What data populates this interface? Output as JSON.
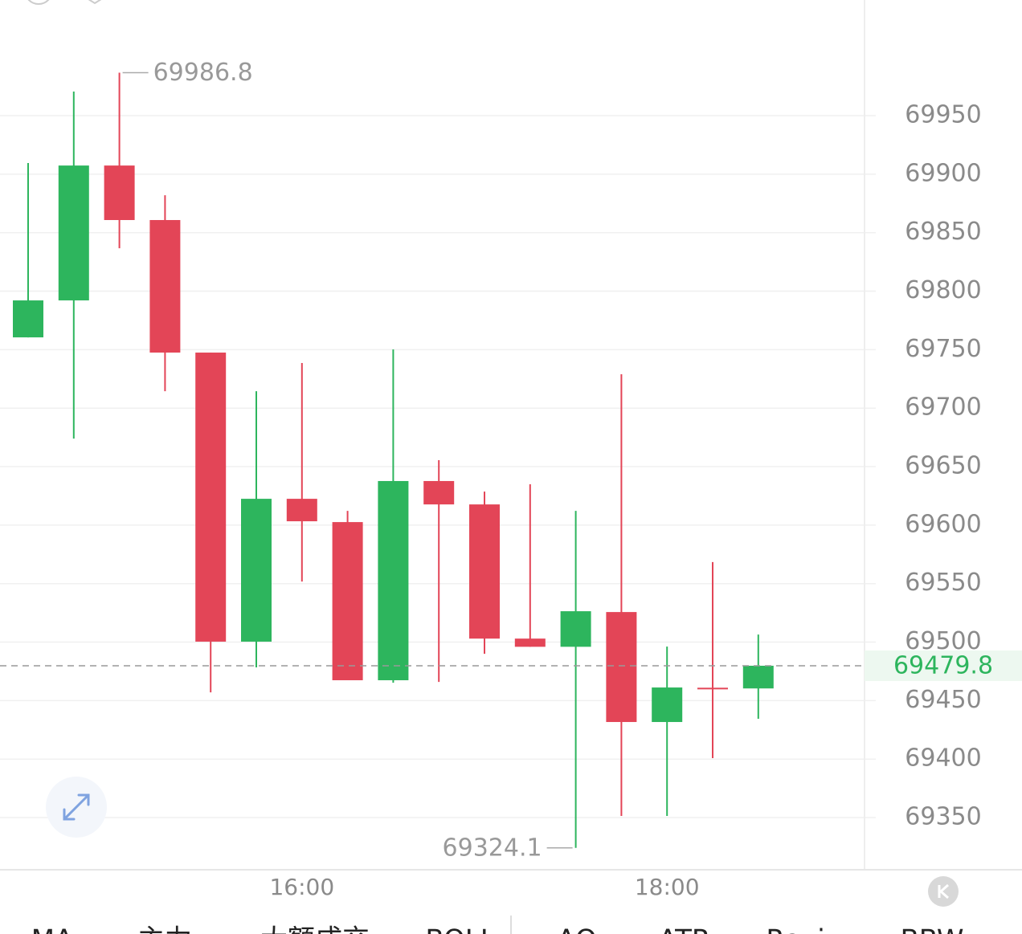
{
  "chart_data": {
    "type": "candlestick",
    "categories": [
      null,
      null,
      null,
      null,
      null,
      null,
      "16:00",
      null,
      null,
      null,
      null,
      null,
      null,
      null,
      "18:00",
      null,
      null
    ],
    "series": {
      "open": [
        69760.5,
        69792.1,
        69907.4,
        69860.8,
        69747.5,
        69500.4,
        69622.5,
        69602.6,
        69467.4,
        69637.7,
        69617.7,
        69503.0,
        69496.0,
        69525.7,
        69431.7,
        69461.0,
        69460.4
      ],
      "high": [
        69909.5,
        69970.6,
        69986.8,
        69882.0,
        69747.5,
        69714.5,
        69738.6,
        69612.2,
        69750.2,
        69655.5,
        69628.7,
        69634.9,
        69612.2,
        69729.0,
        69496.2,
        69568.4,
        69506.5
      ],
      "low": [
        69760.5,
        69674.0,
        69836.7,
        69714.5,
        69457.0,
        69478.4,
        69551.8,
        69467.4,
        69465.3,
        69466.0,
        69490.0,
        69496.0,
        69324.1,
        69351.4,
        69351.4,
        69400.8,
        69434.5
      ],
      "close": [
        69792.1,
        69907.4,
        69860.8,
        69747.5,
        69500.4,
        69622.5,
        69603.3,
        69467.4,
        69637.7,
        69617.7,
        69503.0,
        69496.0,
        69526.4,
        69431.7,
        69461.2,
        69460.0,
        69479.8
      ]
    },
    "up_color": "#2db55d",
    "down_color": "#e34557",
    "ylim": [
      69305.4,
      70048.9
    ],
    "yticks": [
      69350,
      69400,
      69450,
      69500,
      69550,
      69600,
      69650,
      69700,
      69750,
      69800,
      69850,
      69900,
      69950
    ],
    "grid": true,
    "tabs": [
      "MA",
      "主力",
      "大额成交",
      "BOLL",
      "AO",
      "ATR",
      "Ravi",
      "BBW"
    ]
  }
}
